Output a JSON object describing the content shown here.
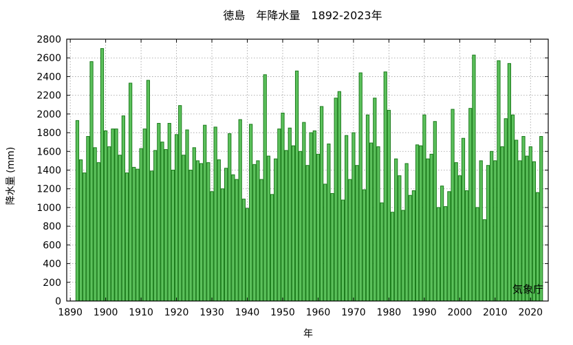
{
  "chart_data": {
    "type": "bar",
    "title": "徳島　年降水量　1892-2023年",
    "xlabel": "年",
    "ylabel": "降水量 (mm)",
    "source_label": "気象庁",
    "xlim": [
      1889,
      2025
    ],
    "ylim": [
      0,
      2800
    ],
    "x_ticks": [
      1890,
      1900,
      1910,
      1920,
      1930,
      1940,
      1950,
      1960,
      1970,
      1980,
      1990,
      2000,
      2010,
      2020
    ],
    "y_ticks": [
      0,
      200,
      400,
      600,
      800,
      1000,
      1200,
      1400,
      1600,
      1800,
      2000,
      2200,
      2400,
      2600,
      2800
    ],
    "grid": true,
    "colors": {
      "bar_fill": "#5cc15c",
      "bar_stroke": "#1a7a1a",
      "grid": "#999999",
      "frame": "#000000"
    },
    "x": [
      1892,
      1893,
      1894,
      1895,
      1896,
      1897,
      1898,
      1899,
      1900,
      1901,
      1902,
      1903,
      1904,
      1905,
      1906,
      1907,
      1908,
      1909,
      1910,
      1911,
      1912,
      1913,
      1914,
      1915,
      1916,
      1917,
      1918,
      1919,
      1920,
      1921,
      1922,
      1923,
      1924,
      1925,
      1926,
      1927,
      1928,
      1929,
      1930,
      1931,
      1932,
      1933,
      1934,
      1935,
      1936,
      1937,
      1938,
      1939,
      1940,
      1941,
      1942,
      1943,
      1944,
      1945,
      1946,
      1947,
      1948,
      1949,
      1950,
      1951,
      1952,
      1953,
      1954,
      1955,
      1956,
      1957,
      1958,
      1959,
      1960,
      1961,
      1962,
      1963,
      1964,
      1965,
      1966,
      1967,
      1968,
      1969,
      1970,
      1971,
      1972,
      1973,
      1974,
      1975,
      1976,
      1977,
      1978,
      1979,
      1980,
      1981,
      1982,
      1983,
      1984,
      1985,
      1986,
      1987,
      1988,
      1989,
      1990,
      1991,
      1992,
      1993,
      1994,
      1995,
      1996,
      1997,
      1998,
      1999,
      2000,
      2001,
      2002,
      2003,
      2004,
      2005,
      2006,
      2007,
      2008,
      2009,
      2010,
      2011,
      2012,
      2013,
      2014,
      2015,
      2016,
      2017,
      2018,
      2019,
      2020,
      2021,
      2022,
      2023
    ],
    "values": [
      1930,
      1510,
      1370,
      1760,
      2560,
      1640,
      1480,
      2700,
      1820,
      1650,
      1840,
      1840,
      1560,
      1980,
      1370,
      2330,
      1430,
      1410,
      1630,
      1840,
      2360,
      1390,
      1610,
      1900,
      1700,
      1620,
      1900,
      1400,
      1780,
      2090,
      1560,
      1830,
      1400,
      1640,
      1500,
      1470,
      1880,
      1480,
      1170,
      1860,
      1510,
      1200,
      1420,
      1790,
      1350,
      1300,
      1940,
      1090,
      990,
      1890,
      1460,
      1500,
      1300,
      2420,
      1550,
      1140,
      1520,
      1840,
      2010,
      1610,
      1850,
      1660,
      2460,
      1600,
      1910,
      1450,
      1800,
      1820,
      1570,
      2080,
      1250,
      1680,
      1150,
      2170,
      2240,
      1080,
      1770,
      1300,
      1800,
      1450,
      2440,
      1190,
      1990,
      1690,
      2170,
      1650,
      1050,
      2450,
      2040,
      950,
      1520,
      1340,
      970,
      1470,
      1130,
      1180,
      1670,
      1660,
      1990,
      1520,
      1570,
      1920,
      1000,
      1230,
      1010,
      1170,
      2050,
      1480,
      1340,
      1740,
      1180,
      2060,
      2630,
      1000,
      1500,
      870,
      1450,
      1600,
      1500,
      2570,
      1650,
      1950,
      2540,
      1990,
      1720,
      1500,
      1760,
      1550,
      1650,
      1490,
      1160,
      1760
    ]
  }
}
